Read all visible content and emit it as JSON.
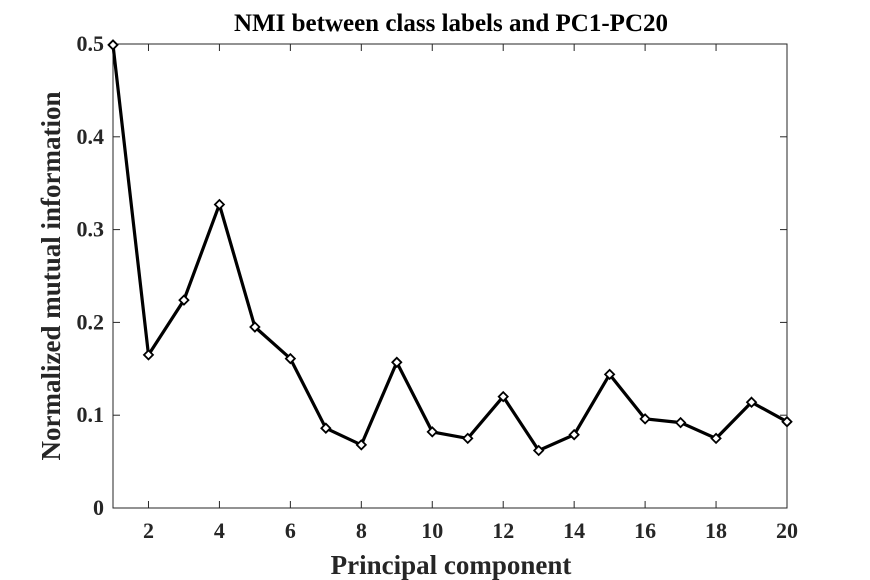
{
  "chart_data": {
    "type": "line",
    "title": "NMI between class labels and PC1-PC20",
    "xlabel": "Principal component",
    "ylabel": "Normalized mutual information",
    "xlim": [
      1,
      20
    ],
    "ylim": [
      0,
      0.5
    ],
    "xticks": [
      2,
      4,
      6,
      8,
      10,
      12,
      14,
      16,
      18,
      20
    ],
    "yticks": [
      0,
      0.1,
      0.2,
      0.3,
      0.4,
      0.5
    ],
    "ytick_labels": [
      "0",
      "0.1",
      "0.2",
      "0.3",
      "0.4",
      "0.5"
    ],
    "grid": false,
    "box": true,
    "marker": "diamond",
    "line_color": "#000000",
    "x": [
      1,
      2,
      3,
      4,
      5,
      6,
      7,
      8,
      9,
      10,
      11,
      12,
      13,
      14,
      15,
      16,
      17,
      18,
      19,
      20
    ],
    "series": [
      {
        "values": [
          0.499,
          0.165,
          0.224,
          0.327,
          0.195,
          0.161,
          0.086,
          0.068,
          0.157,
          0.082,
          0.075,
          0.12,
          0.062,
          0.079,
          0.144,
          0.096,
          0.092,
          0.075,
          0.114,
          0.093
        ]
      }
    ]
  }
}
